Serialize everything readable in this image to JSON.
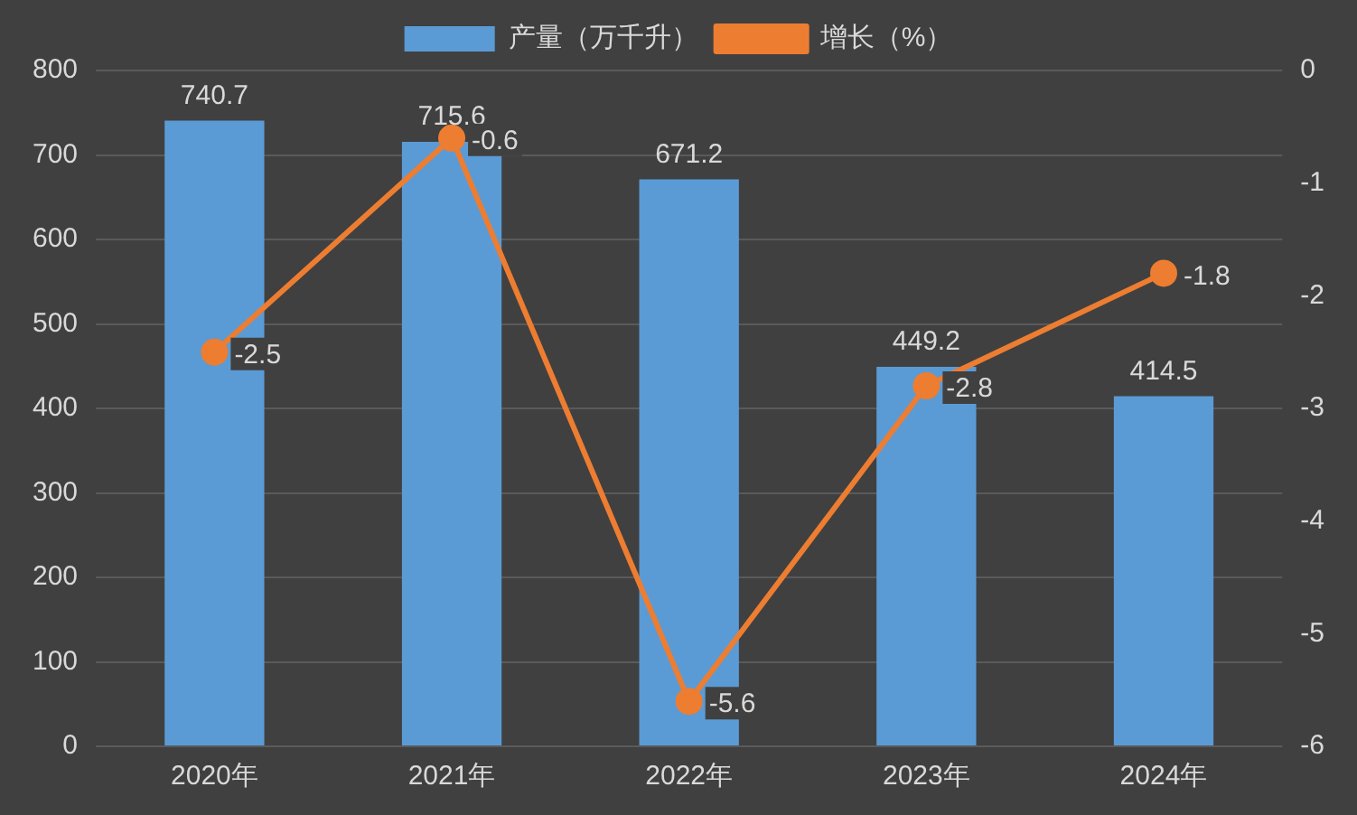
{
  "chart_data": {
    "type": "bar",
    "categories": [
      "2020年",
      "2021年",
      "2022年",
      "2023年",
      "2024年"
    ],
    "series": [
      {
        "name": "产量（万千升）",
        "color": "#5b9bd5",
        "values": [
          740.7,
          715.6,
          671.2,
          449.2,
          414.5
        ]
      },
      {
        "name": "增长（%）",
        "type": "line",
        "axis": "y2",
        "color": "#ed7d31",
        "values": [
          -2.5,
          -0.6,
          -5.6,
          -2.8,
          -1.8
        ]
      }
    ],
    "ylim": [
      0,
      800
    ],
    "yticks": [
      0,
      100,
      200,
      300,
      400,
      500,
      600,
      700,
      800
    ],
    "y2lim": [
      -6,
      0
    ],
    "y2ticks": [
      -6,
      -5,
      -4,
      -3,
      -2,
      -1,
      0
    ],
    "grid": "y",
    "legend": "top",
    "data_labels": true,
    "marker": "circle",
    "line_style": "solid"
  }
}
